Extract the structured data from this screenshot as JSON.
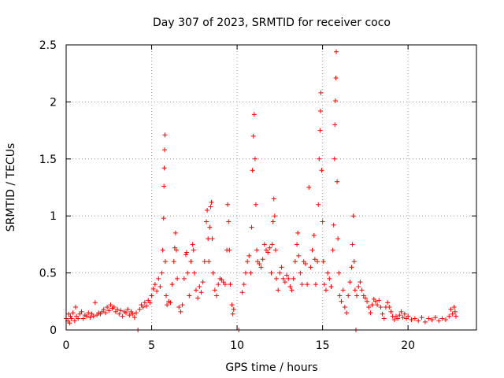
{
  "chart_data": {
    "type": "scatter",
    "title": "Day 307 of 2023, SRMTID for receiver coco",
    "xlabel": "GPS time / hours",
    "ylabel": "SRMTID / TECUs",
    "xlim": [
      0,
      24
    ],
    "ylim": [
      0,
      2.5
    ],
    "xticks": [
      0,
      5,
      10,
      15,
      20
    ],
    "xtick_labels": [
      "0",
      "5",
      "10",
      "15",
      "20"
    ],
    "yticks": [
      0,
      0.5,
      1,
      1.5,
      2,
      2.5
    ],
    "ytick_labels": [
      "0",
      "0.5",
      "1",
      "1.5",
      "2",
      "2.5"
    ],
    "grid": true,
    "marker": "+",
    "color": "#ff0000",
    "series": [
      {
        "name": "SRMTID",
        "points": [
          [
            0.0,
            0.1
          ],
          [
            0.1,
            0.08
          ],
          [
            0.15,
            0.14
          ],
          [
            0.2,
            0.06
          ],
          [
            0.25,
            0.12
          ],
          [
            0.3,
            0.1
          ],
          [
            0.4,
            0.15
          ],
          [
            0.5,
            0.08
          ],
          [
            0.55,
            0.2
          ],
          [
            0.6,
            0.12
          ],
          [
            0.7,
            0.1
          ],
          [
            0.8,
            0.14
          ],
          [
            0.9,
            0.16
          ],
          [
            1.0,
            0.1
          ],
          [
            1.1,
            0.13
          ],
          [
            1.2,
            0.12
          ],
          [
            1.3,
            0.15
          ],
          [
            1.4,
            0.11
          ],
          [
            1.5,
            0.14
          ],
          [
            1.6,
            0.12
          ],
          [
            1.7,
            0.24
          ],
          [
            1.8,
            0.13
          ],
          [
            1.9,
            0.15
          ],
          [
            2.0,
            0.14
          ],
          [
            2.1,
            0.16
          ],
          [
            2.2,
            0.18
          ],
          [
            2.3,
            0.15
          ],
          [
            2.4,
            0.2
          ],
          [
            2.5,
            0.17
          ],
          [
            2.6,
            0.22
          ],
          [
            2.7,
            0.19
          ],
          [
            2.8,
            0.2
          ],
          [
            2.9,
            0.16
          ],
          [
            3.0,
            0.18
          ],
          [
            3.1,
            0.14
          ],
          [
            3.2,
            0.17
          ],
          [
            3.3,
            0.12
          ],
          [
            3.4,
            0.16
          ],
          [
            3.5,
            0.15
          ],
          [
            3.6,
            0.18
          ],
          [
            3.7,
            0.13
          ],
          [
            3.8,
            0.16
          ],
          [
            3.9,
            0.14
          ],
          [
            4.0,
            0.11
          ],
          [
            4.1,
            0.15
          ],
          [
            4.2,
            0.0
          ],
          [
            4.3,
            0.18
          ],
          [
            4.4,
            0.22
          ],
          [
            4.5,
            0.2
          ],
          [
            4.6,
            0.24
          ],
          [
            4.7,
            0.21
          ],
          [
            4.8,
            0.26
          ],
          [
            4.9,
            0.24
          ],
          [
            5.0,
            0.3
          ],
          [
            5.1,
            0.36
          ],
          [
            5.2,
            0.4
          ],
          [
            5.3,
            0.34
          ],
          [
            5.4,
            0.45
          ],
          [
            5.5,
            0.38
          ],
          [
            5.6,
            0.5
          ],
          [
            5.65,
            0.7
          ],
          [
            5.7,
            0.98
          ],
          [
            5.72,
            1.26
          ],
          [
            5.74,
            1.42
          ],
          [
            5.76,
            1.58
          ],
          [
            5.78,
            1.71
          ],
          [
            5.8,
            0.6
          ],
          [
            5.85,
            0.3
          ],
          [
            5.9,
            0.22
          ],
          [
            6.0,
            0.25
          ],
          [
            6.1,
            0.24
          ],
          [
            6.2,
            0.4
          ],
          [
            6.3,
            0.6
          ],
          [
            6.35,
            0.72
          ],
          [
            6.4,
            0.85
          ],
          [
            6.45,
            0.7
          ],
          [
            6.5,
            0.45
          ],
          [
            6.6,
            0.2
          ],
          [
            6.7,
            0.16
          ],
          [
            6.8,
            0.22
          ],
          [
            6.9,
            0.45
          ],
          [
            7.0,
            0.66
          ],
          [
            7.05,
            0.68
          ],
          [
            7.1,
            0.5
          ],
          [
            7.2,
            0.3
          ],
          [
            7.3,
            0.6
          ],
          [
            7.4,
            0.75
          ],
          [
            7.45,
            0.7
          ],
          [
            7.5,
            0.5
          ],
          [
            7.6,
            0.35
          ],
          [
            7.7,
            0.28
          ],
          [
            7.8,
            0.38
          ],
          [
            7.9,
            0.33
          ],
          [
            8.0,
            0.42
          ],
          [
            8.1,
            0.6
          ],
          [
            8.2,
            0.95
          ],
          [
            8.25,
            1.05
          ],
          [
            8.3,
            0.8
          ],
          [
            8.35,
            0.6
          ],
          [
            8.4,
            0.9
          ],
          [
            8.45,
            1.08
          ],
          [
            8.5,
            1.12
          ],
          [
            8.55,
            0.8
          ],
          [
            8.6,
            0.5
          ],
          [
            8.7,
            0.35
          ],
          [
            8.8,
            0.3
          ],
          [
            8.9,
            0.4
          ],
          [
            9.0,
            0.45
          ],
          [
            9.1,
            0.44
          ],
          [
            9.2,
            0.42
          ],
          [
            9.3,
            0.4
          ],
          [
            9.4,
            0.7
          ],
          [
            9.45,
            1.1
          ],
          [
            9.5,
            0.95
          ],
          [
            9.55,
            0.7
          ],
          [
            9.6,
            0.4
          ],
          [
            9.7,
            0.22
          ],
          [
            9.75,
            0.14
          ],
          [
            9.8,
            0.18
          ],
          [
            10.1,
            0.0
          ],
          [
            10.3,
            0.33
          ],
          [
            10.4,
            0.4
          ],
          [
            10.5,
            0.5
          ],
          [
            10.6,
            0.6
          ],
          [
            10.7,
            0.65
          ],
          [
            10.8,
            0.5
          ],
          [
            10.85,
            0.9
          ],
          [
            10.9,
            1.4
          ],
          [
            10.95,
            1.7
          ],
          [
            11.0,
            1.89
          ],
          [
            11.05,
            1.5
          ],
          [
            11.1,
            1.1
          ],
          [
            11.15,
            0.7
          ],
          [
            11.2,
            0.6
          ],
          [
            11.3,
            0.58
          ],
          [
            11.4,
            0.55
          ],
          [
            11.5,
            0.62
          ],
          [
            11.6,
            0.75
          ],
          [
            11.7,
            0.7
          ],
          [
            11.8,
            0.68
          ],
          [
            11.9,
            0.72
          ],
          [
            12.0,
            0.5
          ],
          [
            12.05,
            0.75
          ],
          [
            12.1,
            0.95
          ],
          [
            12.15,
            1.15
          ],
          [
            12.2,
            1.0
          ],
          [
            12.25,
            0.7
          ],
          [
            12.3,
            0.45
          ],
          [
            12.4,
            0.35
          ],
          [
            12.5,
            0.5
          ],
          [
            12.6,
            0.55
          ],
          [
            12.7,
            0.45
          ],
          [
            12.8,
            0.42
          ],
          [
            12.9,
            0.48
          ],
          [
            13.0,
            0.45
          ],
          [
            13.1,
            0.38
          ],
          [
            13.2,
            0.35
          ],
          [
            13.3,
            0.45
          ],
          [
            13.4,
            0.6
          ],
          [
            13.5,
            0.75
          ],
          [
            13.55,
            0.85
          ],
          [
            13.6,
            0.65
          ],
          [
            13.7,
            0.5
          ],
          [
            13.8,
            0.4
          ],
          [
            13.9,
            0.6
          ],
          [
            14.0,
            0.58
          ],
          [
            14.1,
            0.4
          ],
          [
            14.2,
            1.25
          ],
          [
            14.3,
            0.55
          ],
          [
            14.4,
            0.7
          ],
          [
            14.5,
            0.83
          ],
          [
            14.55,
            0.62
          ],
          [
            14.6,
            0.4
          ],
          [
            14.7,
            0.6
          ],
          [
            14.75,
            1.1
          ],
          [
            14.8,
            1.5
          ],
          [
            14.85,
            1.75
          ],
          [
            14.88,
            1.92
          ],
          [
            14.9,
            2.08
          ],
          [
            14.95,
            1.4
          ],
          [
            15.0,
            0.95
          ],
          [
            15.05,
            0.6
          ],
          [
            15.1,
            0.4
          ],
          [
            15.2,
            0.35
          ],
          [
            15.3,
            0.5
          ],
          [
            15.4,
            0.45
          ],
          [
            15.5,
            0.38
          ],
          [
            15.6,
            0.7
          ],
          [
            15.65,
            0.92
          ],
          [
            15.7,
            1.5
          ],
          [
            15.72,
            1.8
          ],
          [
            15.75,
            2.01
          ],
          [
            15.78,
            2.21
          ],
          [
            15.8,
            2.44
          ],
          [
            15.85,
            1.3
          ],
          [
            15.9,
            0.8
          ],
          [
            15.95,
            0.5
          ],
          [
            16.0,
            0.3
          ],
          [
            16.1,
            0.25
          ],
          [
            16.2,
            0.35
          ],
          [
            16.3,
            0.2
          ],
          [
            16.4,
            0.15
          ],
          [
            16.5,
            0.3
          ],
          [
            16.6,
            0.42
          ],
          [
            16.7,
            0.55
          ],
          [
            16.75,
            0.75
          ],
          [
            16.8,
            1.0
          ],
          [
            16.85,
            0.6
          ],
          [
            16.9,
            0.35
          ],
          [
            16.95,
            0.0
          ],
          [
            17.0,
            0.3
          ],
          [
            17.1,
            0.38
          ],
          [
            17.2,
            0.42
          ],
          [
            17.3,
            0.35
          ],
          [
            17.4,
            0.3
          ],
          [
            17.5,
            0.28
          ],
          [
            17.6,
            0.25
          ],
          [
            17.7,
            0.2
          ],
          [
            17.8,
            0.15
          ],
          [
            17.9,
            0.22
          ],
          [
            18.0,
            0.27
          ],
          [
            18.1,
            0.25
          ],
          [
            18.2,
            0.22
          ],
          [
            18.3,
            0.26
          ],
          [
            18.4,
            0.2
          ],
          [
            18.5,
            0.14
          ],
          [
            18.6,
            0.1
          ],
          [
            18.7,
            0.2
          ],
          [
            18.8,
            0.24
          ],
          [
            18.9,
            0.2
          ],
          [
            19.0,
            0.16
          ],
          [
            19.1,
            0.12
          ],
          [
            19.2,
            0.09
          ],
          [
            19.3,
            0.12
          ],
          [
            19.4,
            0.1
          ],
          [
            19.5,
            0.13
          ],
          [
            19.6,
            0.16
          ],
          [
            19.7,
            0.11
          ],
          [
            19.8,
            0.14
          ],
          [
            19.9,
            0.1
          ],
          [
            20.0,
            0.12
          ],
          [
            20.2,
            0.09
          ],
          [
            20.4,
            0.1
          ],
          [
            20.6,
            0.08
          ],
          [
            20.8,
            0.11
          ],
          [
            21.0,
            0.07
          ],
          [
            21.2,
            0.1
          ],
          [
            21.4,
            0.09
          ],
          [
            21.6,
            0.11
          ],
          [
            21.8,
            0.08
          ],
          [
            22.0,
            0.1
          ],
          [
            22.2,
            0.09
          ],
          [
            22.4,
            0.12
          ],
          [
            22.5,
            0.18
          ],
          [
            22.6,
            0.14
          ],
          [
            22.7,
            0.2
          ],
          [
            22.75,
            0.16
          ],
          [
            22.8,
            0.12
          ]
        ]
      }
    ]
  }
}
